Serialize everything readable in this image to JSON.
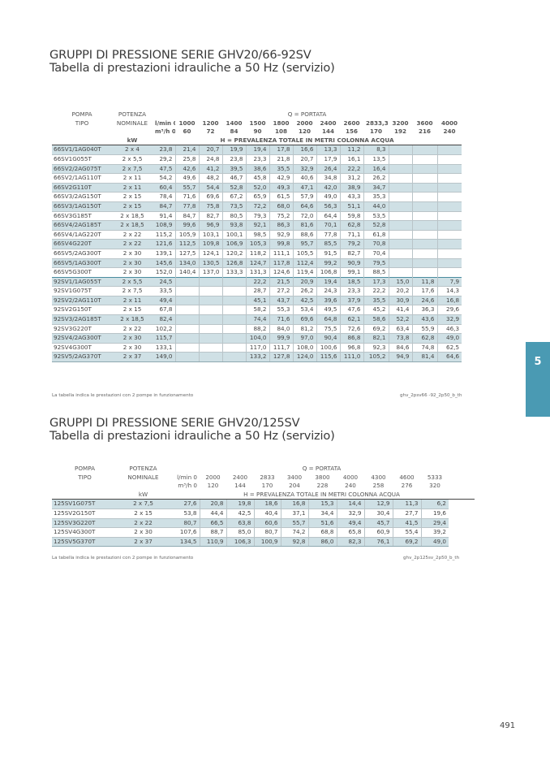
{
  "section1": {
    "title_line1": "GRUPPI DI PRESSIONE SERIE GHV20/66-92SV",
    "title_line2": "Tabella di prestazioni idrauliche a 50 Hz (servizio)",
    "hdr_pompa": "POMPA",
    "hdr_tipo": "TIPO",
    "hdr_potenza": "POTENZA",
    "hdr_nominale": "NOMINALE",
    "hdr_kw": "kW",
    "hdr_q": "Q = PORTATA",
    "unit_lmin": "l/min 0",
    "unit_m3h": "m³/h 0",
    "lmin": [
      "1000",
      "1200",
      "1400",
      "1500",
      "1800",
      "2000",
      "2400",
      "2600",
      "2833,33",
      "3200",
      "3600",
      "4000"
    ],
    "m3h": [
      "60",
      "72",
      "84",
      "90",
      "108",
      "120",
      "144",
      "156",
      "170",
      "192",
      "216",
      "240"
    ],
    "h_label": "H = PREVALENZA   TOTALE   IN METRI  COLONNA  ACQUA",
    "rows": [
      {
        "model": "66SV1/1AG040T",
        "kw": "2 x 4",
        "v": [
          "23,8",
          "21,4",
          "20,7",
          "19,9",
          "19,4",
          "17,8",
          "16,6",
          "13,3",
          "11,2",
          "8,3",
          "",
          "",
          ""
        ]
      },
      {
        "model": "66SV1G055T",
        "kw": "2 x 5,5",
        "v": [
          "29,2",
          "25,8",
          "24,8",
          "23,8",
          "23,3",
          "21,8",
          "20,7",
          "17,9",
          "16,1",
          "13,5",
          "",
          "",
          ""
        ]
      },
      {
        "model": "66SV2/2AG075T",
        "kw": "2 x 7,5",
        "v": [
          "47,5",
          "42,6",
          "41,2",
          "39,5",
          "38,6",
          "35,5",
          "32,9",
          "26,4",
          "22,2",
          "16,4",
          "",
          "",
          ""
        ]
      },
      {
        "model": "66SV2/1AG110T",
        "kw": "2 x 11",
        "v": [
          "54,2",
          "49,6",
          "48,2",
          "46,7",
          "45,8",
          "42,9",
          "40,6",
          "34,8",
          "31,2",
          "26,2",
          "",
          "",
          ""
        ]
      },
      {
        "model": "66SV2G110T",
        "kw": "2 x 11",
        "v": [
          "60,4",
          "55,7",
          "54,4",
          "52,8",
          "52,0",
          "49,3",
          "47,1",
          "42,0",
          "38,9",
          "34,7",
          "",
          "",
          ""
        ]
      },
      {
        "model": "66SV3/2AG150T",
        "kw": "2 x 15",
        "v": [
          "78,4",
          "71,6",
          "69,6",
          "67,2",
          "65,9",
          "61,5",
          "57,9",
          "49,0",
          "43,3",
          "35,3",
          "",
          "",
          ""
        ]
      },
      {
        "model": "66SV3/1AG150T",
        "kw": "2 x 15",
        "v": [
          "84,7",
          "77,8",
          "75,8",
          "73,5",
          "72,2",
          "68,0",
          "64,6",
          "56,3",
          "51,1",
          "44,0",
          "",
          "",
          ""
        ]
      },
      {
        "model": "66SV3G185T",
        "kw": "2 x 18,5",
        "v": [
          "91,4",
          "84,7",
          "82,7",
          "80,5",
          "79,3",
          "75,2",
          "72,0",
          "64,4",
          "59,8",
          "53,5",
          "",
          "",
          ""
        ]
      },
      {
        "model": "66SV4/2AG185T",
        "kw": "2 x 18,5",
        "v": [
          "108,9",
          "99,6",
          "96,9",
          "93,8",
          "92,1",
          "86,3",
          "81,6",
          "70,1",
          "62,8",
          "52,8",
          "",
          "",
          ""
        ]
      },
      {
        "model": "66SV4/1AG220T",
        "kw": "2 x 22",
        "v": [
          "115,2",
          "105,9",
          "103,1",
          "100,1",
          "98,5",
          "92,9",
          "88,6",
          "77,8",
          "71,1",
          "61,8",
          "",
          "",
          ""
        ]
      },
      {
        "model": "66SV4G220T",
        "kw": "2 x 22",
        "v": [
          "121,6",
          "112,5",
          "109,8",
          "106,9",
          "105,3",
          "99,8",
          "95,7",
          "85,5",
          "79,2",
          "70,8",
          "",
          "",
          ""
        ]
      },
      {
        "model": "66SV5/2AG300T",
        "kw": "2 x 30",
        "v": [
          "139,1",
          "127,5",
          "124,1",
          "120,2",
          "118,2",
          "111,1",
          "105,5",
          "91,5",
          "82,7",
          "70,4",
          "",
          "",
          ""
        ]
      },
      {
        "model": "66SV5/1AG300T",
        "kw": "2 x 30",
        "v": [
          "145,6",
          "134,0",
          "130,5",
          "126,8",
          "124,7",
          "117,8",
          "112,4",
          "99,2",
          "90,9",
          "79,5",
          "",
          "",
          ""
        ]
      },
      {
        "model": "66SV5G300T",
        "kw": "2 x 30",
        "v": [
          "152,0",
          "140,4",
          "137,0",
          "133,3",
          "131,3",
          "124,6",
          "119,4",
          "106,8",
          "99,1",
          "88,5",
          "",
          "",
          ""
        ]
      },
      {
        "model": "92SV1/1AG055T",
        "kw": "2 x 5,5",
        "v": [
          "24,5",
          "",
          "",
          "",
          "22,2",
          "21,5",
          "20,9",
          "19,4",
          "18,5",
          "17,3",
          "15,0",
          "11,8",
          "7,9"
        ]
      },
      {
        "model": "92SV1G075T",
        "kw": "2 x 7,5",
        "v": [
          "33,5",
          "",
          "",
          "",
          "28,7",
          "27,2",
          "26,2",
          "24,3",
          "23,3",
          "22,2",
          "20,2",
          "17,6",
          "14,3"
        ]
      },
      {
        "model": "92SV2/2AG110T",
        "kw": "2 x 11",
        "v": [
          "49,4",
          "",
          "",
          "",
          "45,1",
          "43,7",
          "42,5",
          "39,6",
          "37,9",
          "35,5",
          "30,9",
          "24,6",
          "16,8"
        ]
      },
      {
        "model": "92SV2G150T",
        "kw": "2 x 15",
        "v": [
          "67,8",
          "",
          "",
          "",
          "58,2",
          "55,3",
          "53,4",
          "49,5",
          "47,6",
          "45,2",
          "41,4",
          "36,3",
          "29,6"
        ]
      },
      {
        "model": "92SV3/2AG185T",
        "kw": "2 x 18,5",
        "v": [
          "82,4",
          "",
          "",
          "",
          "74,4",
          "71,6",
          "69,6",
          "64,8",
          "62,1",
          "58,6",
          "52,2",
          "43,6",
          "32,9"
        ]
      },
      {
        "model": "92SV3G220T",
        "kw": "2 x 22",
        "v": [
          "102,2",
          "",
          "",
          "",
          "88,2",
          "84,0",
          "81,2",
          "75,5",
          "72,6",
          "69,2",
          "63,4",
          "55,9",
          "46,3"
        ]
      },
      {
        "model": "92SV4/2AG300T",
        "kw": "2 x 30",
        "v": [
          "115,7",
          "",
          "",
          "",
          "104,0",
          "99,9",
          "97,0",
          "90,4",
          "86,8",
          "82,1",
          "73,8",
          "62,8",
          "49,0"
        ]
      },
      {
        "model": "92SV4G300T",
        "kw": "2 x 30",
        "v": [
          "133,1",
          "",
          "",
          "",
          "117,0",
          "111,7",
          "108,0",
          "100,6",
          "96,8",
          "92,3",
          "84,6",
          "74,8",
          "62,5"
        ]
      },
      {
        "model": "92SV5/2AG370T",
        "kw": "2 x 37",
        "v": [
          "149,0",
          "",
          "",
          "",
          "133,2",
          "127,8",
          "124,0",
          "115,6",
          "111,0",
          "105,2",
          "94,9",
          "81,4",
          "64,6"
        ]
      }
    ],
    "note_left": "La tabella indica le prestazioni con 2 pompe in funzionamento",
    "note_right": "ghv_2psv66 -92_2p50_b_th"
  },
  "section2": {
    "title_line1": "GRUPPI DI PRESSIONE SERIE GHV20/125SV",
    "title_line2": "Tabella di prestazioni idrauliche a 50 Hz (servizio)",
    "hdr_pompa": "POMPA",
    "hdr_tipo": "TIPO",
    "hdr_potenza": "POTENZA",
    "hdr_nominale": "NOMINALE",
    "hdr_kw": "kW",
    "hdr_q": "Q = PORTATA",
    "unit_lmin": "l/min 0",
    "unit_m3h": "m³/h 0",
    "lmin": [
      "2000",
      "2400",
      "2833",
      "3400",
      "3800",
      "4000",
      "4300",
      "4600",
      "5333"
    ],
    "m3h": [
      "120",
      "144",
      "170",
      "204",
      "228",
      "240",
      "258",
      "276",
      "320"
    ],
    "h_label": "H = PREVALENZA     TOTALE   IN METRI  COLONNA  ACQUA",
    "rows": [
      {
        "model": "125SV1G075T",
        "kw": "2 x 7,5",
        "v": [
          "27,6",
          "20,8",
          "19,8",
          "18,6",
          "16,8",
          "15,3",
          "14,4",
          "12,9",
          "11,3",
          "6,2"
        ]
      },
      {
        "model": "125SV2G150T",
        "kw": "2 x 15",
        "v": [
          "53,8",
          "44,4",
          "42,5",
          "40,4",
          "37,1",
          "34,4",
          "32,9",
          "30,4",
          "27,7",
          "19,6"
        ]
      },
      {
        "model": "125SV3G220T",
        "kw": "2 x 22",
        "v": [
          "80,7",
          "66,5",
          "63,8",
          "60,6",
          "55,7",
          "51,6",
          "49,4",
          "45,7",
          "41,5",
          "29,4"
        ]
      },
      {
        "model": "125SV4G300T",
        "kw": "2 x 30",
        "v": [
          "107,6",
          "88,7",
          "85,0",
          "80,7",
          "74,2",
          "68,8",
          "65,8",
          "60,9",
          "55,4",
          "39,2"
        ]
      },
      {
        "model": "125SV5G370T",
        "kw": "2 x 37",
        "v": [
          "134,5",
          "110,9",
          "106,3",
          "100,9",
          "92,8",
          "86,0",
          "82,3",
          "76,1",
          "69,2",
          "49,0"
        ]
      }
    ],
    "note_left": "La tabella indica le prestazioni con 2 pompe in funzionamento",
    "note_right": "ghv_2p125sv_2p50_b_th"
  },
  "side_tab": "5",
  "page_number": "491",
  "colors": {
    "row_shade": "#cfe0e5",
    "tab": "#4a9ab3"
  }
}
